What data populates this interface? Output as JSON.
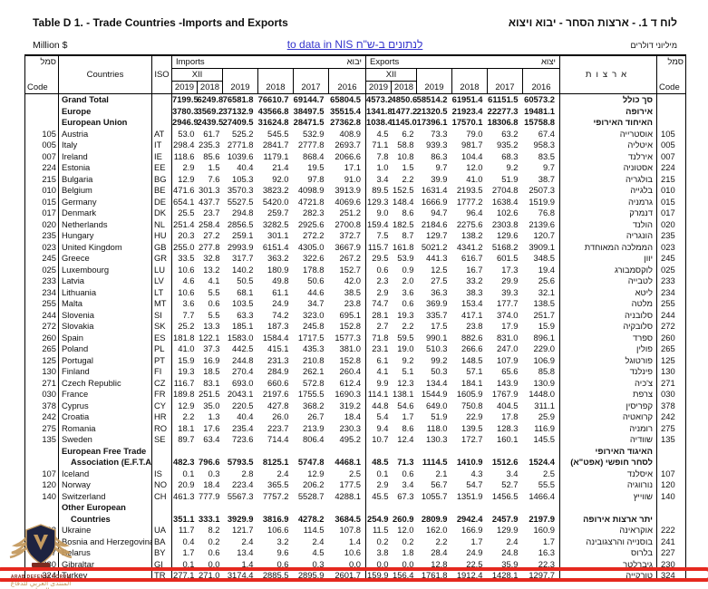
{
  "page": {
    "title_en": "Table D 1. -  Trade Countries -Imports and Exports",
    "title_he": "לוח ד 1. -  ארצות הסחר - יבוא ויצוא",
    "unit_en": "Million $",
    "unit_he": "מיליוני דולרים",
    "nis_link": "to data in NIS לנתונים ב-ש\"ח",
    "link_color": "#3333cc",
    "highlight_color": "#e5281e"
  },
  "watermark": {
    "shield_icon": "arab-defense-forum-emblem",
    "line1": "ARAB DEFENSE FORUM",
    "line2": "المنتدى العربي للدفاع والتسليح",
    "gold": "#c49a5f",
    "navy": "#1e2340"
  },
  "table": {
    "header": {
      "code_he": "סמל",
      "code_en": "Code",
      "countries": "Countries",
      "iso": "ISO",
      "imports_en": "Imports",
      "imports_he": "יבוא",
      "exports_en": "Exports",
      "exports_he": "יצוא",
      "xii": "XII",
      "arzot": "ארצות",
      "years": [
        "2019",
        "2018",
        "2019",
        "2018",
        "2017",
        "2016"
      ]
    },
    "rows": [
      {
        "code": "",
        "name": "Grand Total",
        "iso": "",
        "v": [
          "7199.5",
          "6249.8",
          "76581.8",
          "76610.7",
          "69144.7",
          "65804.5",
          "4573.2",
          "4850.6",
          "58514.2",
          "61951.4",
          "61151.5",
          "60573.2"
        ],
        "he": "סך כולל",
        "code2": "",
        "bold": true
      },
      {
        "code": "",
        "name": "Europe",
        "iso": "",
        "v": [
          "3780.3",
          "3569.2",
          "37132.9",
          "43566.8",
          "38497.5",
          "35515.4",
          "1341.8",
          "1477.2",
          "21320.5",
          "21923.4",
          "22277.3",
          "19481.1"
        ],
        "he": "אירופה",
        "code2": "",
        "bold": true
      },
      {
        "code": "",
        "name": "European Union",
        "iso": "",
        "v": [
          "2946.9",
          "2439.5",
          "27409.5",
          "31624.8",
          "28471.5",
          "27362.8",
          "1038.4",
          "1145.0",
          "17396.1",
          "17570.1",
          "18306.8",
          "15758.8"
        ],
        "he": "האיחוד האירופי",
        "code2": "",
        "bold": true
      },
      {
        "code": "105",
        "name": "Austria",
        "iso": "AT",
        "v": [
          "53.0",
          "61.7",
          "525.2",
          "545.5",
          "532.9",
          "408.9",
          "4.5",
          "6.2",
          "73.3",
          "79.0",
          "63.2",
          "67.4"
        ],
        "he": "אוסטרייה",
        "code2": "105"
      },
      {
        "code": "005",
        "name": "Italy",
        "iso": "IT",
        "v": [
          "298.4",
          "235.3",
          "2771.8",
          "2841.7",
          "2777.8",
          "2693.7",
          "71.1",
          "58.8",
          "939.3",
          "981.7",
          "935.2",
          "958.3"
        ],
        "he": "איטליה",
        "code2": "005"
      },
      {
        "code": "007",
        "name": "Ireland",
        "iso": "IE",
        "v": [
          "118.6",
          "85.6",
          "1039.6",
          "1179.1",
          "868.4",
          "2066.6",
          "7.8",
          "10.8",
          "86.3",
          "104.4",
          "68.3",
          "83.5"
        ],
        "he": "אירלנד",
        "code2": "007"
      },
      {
        "code": "224",
        "name": "Estonia",
        "iso": "EE",
        "v": [
          "2.9",
          "1.5",
          "40.4",
          "21.4",
          "19.5",
          "17.1",
          "1.0",
          "1.5",
          "9.7",
          "12.0",
          "9.2",
          "9.7"
        ],
        "he": "אסטוניה",
        "code2": "224"
      },
      {
        "code": "215",
        "name": "Bulgaria",
        "iso": "BG",
        "v": [
          "12.9",
          "7.6",
          "105.3",
          "92.0",
          "97.8",
          "91.0",
          "3.4",
          "2.2",
          "39.9",
          "41.0",
          "51.9",
          "38.7"
        ],
        "he": "בולגריה",
        "code2": "215"
      },
      {
        "code": "010",
        "name": "Belgium",
        "iso": "BE",
        "v": [
          "471.6",
          "301.3",
          "3570.3",
          "3823.2",
          "4098.9",
          "3913.9",
          "89.5",
          "152.5",
          "1631.4",
          "2193.5",
          "2704.8",
          "2507.3"
        ],
        "he": "בלגייה",
        "code2": "010"
      },
      {
        "code": "015",
        "name": "Germany",
        "iso": "DE",
        "v": [
          "654.1",
          "437.7",
          "5527.5",
          "5420.0",
          "4721.8",
          "4069.6",
          "129.3",
          "148.4",
          "1666.9",
          "1777.2",
          "1638.4",
          "1519.9"
        ],
        "he": "גרמניה",
        "code2": "015"
      },
      {
        "code": "017",
        "name": "Denmark",
        "iso": "DK",
        "v": [
          "25.5",
          "23.7",
          "294.8",
          "259.7",
          "282.3",
          "251.2",
          "9.0",
          "8.6",
          "94.7",
          "96.4",
          "102.6",
          "76.8"
        ],
        "he": "דנמרק",
        "code2": "017"
      },
      {
        "code": "020",
        "name": "Netherlands",
        "iso": "NL",
        "v": [
          "251.4",
          "258.4",
          "2856.5",
          "3282.5",
          "2925.6",
          "2700.8",
          "159.4",
          "182.5",
          "2184.6",
          "2275.6",
          "2303.8",
          "2139.6"
        ],
        "he": "הולנד",
        "code2": "020"
      },
      {
        "code": "235",
        "name": "Hungary",
        "iso": "HU",
        "v": [
          "20.3",
          "27.2",
          "259.1",
          "301.1",
          "272.2",
          "372.7",
          "7.5",
          "8.7",
          "129.7",
          "138.2",
          "129.6",
          "120.7"
        ],
        "he": "הונגריה",
        "code2": "235"
      },
      {
        "code": "023",
        "name": "United Kingdom",
        "iso": "GB",
        "v": [
          "255.0",
          "277.8",
          "2993.9",
          "6151.4",
          "4305.0",
          "3667.9",
          "115.7",
          "161.8",
          "5021.2",
          "4341.2",
          "5168.2",
          "3909.1"
        ],
        "he": "הממלכה המאוחדת",
        "code2": "023"
      },
      {
        "code": "245",
        "name": "Greece",
        "iso": "GR",
        "v": [
          "33.5",
          "32.8",
          "317.7",
          "363.2",
          "322.6",
          "267.2",
          "29.5",
          "53.9",
          "441.3",
          "616.7",
          "601.5",
          "348.5"
        ],
        "he": "יוון",
        "code2": "245"
      },
      {
        "code": "025",
        "name": "Luxembourg",
        "iso": "LU",
        "v": [
          "10.6",
          "13.2",
          "140.2",
          "180.9",
          "178.8",
          "152.7",
          "0.6",
          "0.9",
          "12.5",
          "16.7",
          "17.3",
          "19.4"
        ],
        "he": "לוקסמבורג",
        "code2": "025"
      },
      {
        "code": "233",
        "name": "Latvia",
        "iso": "LV",
        "v": [
          "4.6",
          "4.1",
          "50.5",
          "49.8",
          "50.6",
          "42.0",
          "2.3",
          "2.0",
          "27.5",
          "33.2",
          "29.9",
          "25.6"
        ],
        "he": "לטבייה",
        "code2": "233"
      },
      {
        "code": "234",
        "name": "Lithuania",
        "iso": "LT",
        "v": [
          "10.6",
          "5.5",
          "68.1",
          "61.1",
          "44.6",
          "38.5",
          "2.9",
          "3.6",
          "36.3",
          "38.3",
          "39.3",
          "32.1"
        ],
        "he": "ליטא",
        "code2": "234"
      },
      {
        "code": "255",
        "name": "Malta",
        "iso": "MT",
        "v": [
          "3.6",
          "0.6",
          "103.5",
          "24.9",
          "34.7",
          "23.8",
          "74.7",
          "0.6",
          "369.9",
          "153.4",
          "177.7",
          "138.5"
        ],
        "he": "מלטה",
        "code2": "255"
      },
      {
        "code": "244",
        "name": "Slovenia",
        "iso": "SI",
        "v": [
          "7.7",
          "5.5",
          "63.3",
          "74.2",
          "323.0",
          "695.1",
          "28.1",
          "19.3",
          "335.7",
          "417.1",
          "374.0",
          "251.7"
        ],
        "he": "סלובניה",
        "code2": "244"
      },
      {
        "code": "272",
        "name": "Slovakia",
        "iso": "SK",
        "v": [
          "25.2",
          "13.3",
          "185.1",
          "187.3",
          "245.8",
          "152.8",
          "2.7",
          "2.2",
          "17.5",
          "23.8",
          "17.9",
          "15.9"
        ],
        "he": "סלובקיה",
        "code2": "272"
      },
      {
        "code": "260",
        "name": "Spain",
        "iso": "ES",
        "v": [
          "181.8",
          "122.1",
          "1583.0",
          "1584.4",
          "1717.5",
          "1577.3",
          "71.8",
          "59.5",
          "990.1",
          "882.6",
          "831.0",
          "896.1"
        ],
        "he": "ספרד",
        "code2": "260"
      },
      {
        "code": "265",
        "name": "Poland",
        "iso": "PL",
        "v": [
          "41.0",
          "37.3",
          "442.5",
          "415.1",
          "435.3",
          "381.0",
          "23.1",
          "19.0",
          "510.3",
          "266.6",
          "247.0",
          "229.0"
        ],
        "he": "פולין",
        "code2": "265"
      },
      {
        "code": "125",
        "name": "Portugal",
        "iso": "PT",
        "v": [
          "15.9",
          "16.9",
          "244.8",
          "231.3",
          "210.8",
          "152.8",
          "6.1",
          "9.2",
          "99.2",
          "148.5",
          "107.9",
          "106.9"
        ],
        "he": "פורטוגל",
        "code2": "125"
      },
      {
        "code": "130",
        "name": "Finland",
        "iso": "FI",
        "v": [
          "19.3",
          "18.5",
          "270.4",
          "284.9",
          "262.1",
          "260.4",
          "4.1",
          "5.1",
          "50.3",
          "57.1",
          "65.6",
          "85.8"
        ],
        "he": "פינלנד",
        "code2": "130"
      },
      {
        "code": "271",
        "name": "Czech Republic",
        "iso": "CZ",
        "v": [
          "116.7",
          "83.1",
          "693.0",
          "660.6",
          "572.8",
          "612.4",
          "9.9",
          "12.3",
          "134.4",
          "184.1",
          "143.9",
          "130.9"
        ],
        "he": "צ'כיה",
        "code2": "271"
      },
      {
        "code": "030",
        "name": "France",
        "iso": "FR",
        "v": [
          "189.8",
          "251.5",
          "2043.1",
          "2197.6",
          "1755.5",
          "1690.3",
          "114.1",
          "138.1",
          "1544.9",
          "1605.9",
          "1767.9",
          "1448.0"
        ],
        "he": "צרפת",
        "code2": "030"
      },
      {
        "code": "378",
        "name": "Cyprus",
        "iso": "CY",
        "v": [
          "12.9",
          "35.0",
          "220.5",
          "427.8",
          "368.2",
          "319.2",
          "44.8",
          "54.6",
          "649.0",
          "750.8",
          "404.5",
          "311.1"
        ],
        "he": "קפריסין",
        "code2": "378"
      },
      {
        "code": "242",
        "name": "Croatia",
        "iso": "HR",
        "v": [
          "2.2",
          "1.3",
          "40.4",
          "26.0",
          "26.7",
          "18.4",
          "5.4",
          "1.7",
          "51.9",
          "22.9",
          "17.8",
          "25.9"
        ],
        "he": "קרואטיה",
        "code2": "242"
      },
      {
        "code": "275",
        "name": "Romania",
        "iso": "RO",
        "v": [
          "18.1",
          "17.6",
          "235.4",
          "223.7",
          "213.9",
          "230.3",
          "9.4",
          "8.6",
          "118.0",
          "139.5",
          "128.3",
          "116.9"
        ],
        "he": "רומניה",
        "code2": "275"
      },
      {
        "code": "135",
        "name": "Sweden",
        "iso": "SE",
        "v": [
          "89.7",
          "63.4",
          "723.6",
          "714.4",
          "806.4",
          "495.2",
          "10.7",
          "12.4",
          "130.3",
          "172.7",
          "160.1",
          "145.5"
        ],
        "he": "שוודיה",
        "code2": "135"
      },
      {
        "code": "",
        "name": "European Free Trade",
        "iso": "",
        "v": null,
        "he": "האיגוד האירופי",
        "code2": "",
        "bold": true
      },
      {
        "code": "",
        "name": "Association (E.F.T.A.)",
        "iso": "",
        "v": [
          "482.3",
          "796.6",
          "5793.5",
          "8125.1",
          "5747.8",
          "4468.1",
          "48.5",
          "71.3",
          "1114.5",
          "1410.9",
          "1512.6",
          "1524.4"
        ],
        "he": "לסחר חופשי (אפט\"א)",
        "code2": "",
        "bold": true,
        "indent": true
      },
      {
        "code": "107",
        "name": "Iceland",
        "iso": "IS",
        "v": [
          "0.1",
          "0.3",
          "2.8",
          "2.4",
          "12.9",
          "2.5",
          "0.1",
          "0.6",
          "2.1",
          "4.3",
          "3.4",
          "2.5"
        ],
        "he": "איסלנד",
        "code2": "107"
      },
      {
        "code": "120",
        "name": "Norway",
        "iso": "NO",
        "v": [
          "20.9",
          "18.4",
          "223.4",
          "365.5",
          "206.2",
          "177.5",
          "2.9",
          "3.4",
          "56.7",
          "54.7",
          "52.7",
          "55.5"
        ],
        "he": "נורווגיה",
        "code2": "120"
      },
      {
        "code": "140",
        "name": "Switzerland",
        "iso": "CH",
        "v": [
          "461.3",
          "777.9",
          "5567.3",
          "7757.2",
          "5528.7",
          "4288.1",
          "45.5",
          "67.3",
          "1055.7",
          "1351.9",
          "1456.5",
          "1466.4"
        ],
        "he": "שווייץ",
        "code2": "140"
      },
      {
        "code": "",
        "name": "Other European",
        "iso": "",
        "v": null,
        "he": "",
        "code2": "",
        "bold": true
      },
      {
        "code": "",
        "name": "Countries",
        "iso": "",
        "v": [
          "351.1",
          "333.1",
          "3929.9",
          "3816.9",
          "4278.2",
          "3684.5",
          "254.9",
          "260.9",
          "2809.9",
          "2942.4",
          "2457.9",
          "2197.9"
        ],
        "he": "יתר ארצות אירופה",
        "code2": "",
        "bold": true,
        "indent": true
      },
      {
        "code": "222",
        "name": "Ukraine",
        "iso": "UA",
        "v": [
          "11.7",
          "8.2",
          "121.7",
          "106.6",
          "114.5",
          "107.8",
          "11.5",
          "12.0",
          "162.0",
          "166.9",
          "129.9",
          "160.9"
        ],
        "he": "אוקראינה",
        "code2": "222"
      },
      {
        "code": "241",
        "name": "Bosnia and Herzegovina",
        "iso": "BA",
        "v": [
          "0.4",
          "0.2",
          "2.4",
          "3.2",
          "2.4",
          "1.4",
          "0.2",
          "0.2",
          "2.2",
          "1.7",
          "2.4",
          "1.7"
        ],
        "he": "בוסנייה והרצגובינה",
        "code2": "241"
      },
      {
        "code": "227",
        "name": "Belarus",
        "iso": "BY",
        "v": [
          "1.7",
          "0.6",
          "13.4",
          "9.6",
          "4.5",
          "10.6",
          "3.8",
          "1.8",
          "28.4",
          "24.9",
          "24.8",
          "16.3"
        ],
        "he": "בלרוס",
        "code2": "227"
      },
      {
        "code": "230",
        "name": "Gibraltar",
        "iso": "GI",
        "v": [
          "0.1",
          "0.0",
          "1.4",
          "0.6",
          "0.3",
          "0.0",
          "0.0",
          "0.0",
          "12.8",
          "22.5",
          "35.9",
          "22.3"
        ],
        "he": "גיברלטר",
        "code2": "230"
      },
      {
        "code": "324",
        "name": "Turkey",
        "iso": "TR",
        "v": [
          "277.1",
          "271.0",
          "3174.4",
          "2885.5",
          "2895.9",
          "2601.7",
          "159.9",
          "156.4",
          "1761.8",
          "1912.4",
          "1428.1",
          "1297.7"
        ],
        "he": "טורקייה",
        "code2": "324",
        "highlight": true
      }
    ]
  }
}
